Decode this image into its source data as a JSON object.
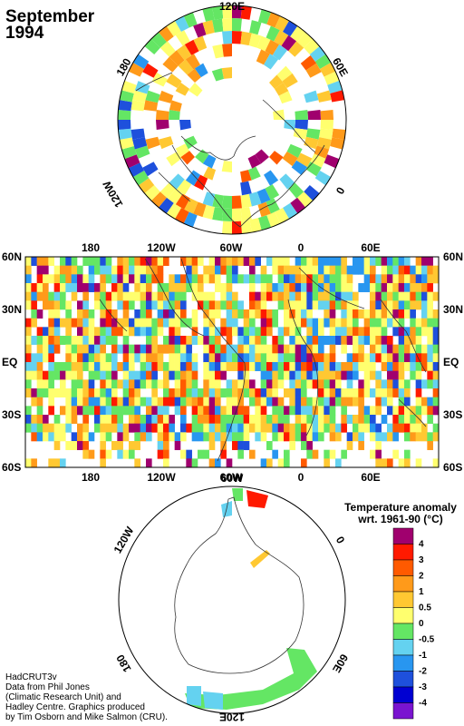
{
  "header": {
    "month": "September",
    "year": "1994"
  },
  "north_polar": {
    "labels": [
      "120E",
      "60E",
      "0",
      "120W",
      "180"
    ]
  },
  "equirect": {
    "lon_labels": [
      "180",
      "120W",
      "60W",
      "0",
      "60E"
    ],
    "lat_labels": [
      "60N",
      "30N",
      "EQ",
      "30S",
      "60S"
    ]
  },
  "south_polar": {
    "labels": [
      "60W",
      "0",
      "60E",
      "120E",
      "180",
      "120W"
    ]
  },
  "legend": {
    "title_line1": "Temperature anomaly",
    "title_line2": "wrt. 1961-90  (°C)",
    "entries": [
      {
        "label": "4",
        "color": "#a0006e"
      },
      {
        "label": "3",
        "color": "#ff1a00"
      },
      {
        "label": "2",
        "color": "#ff5a00"
      },
      {
        "label": "1",
        "color": "#ff9a1a"
      },
      {
        "label": "0.5",
        "color": "#ffc832"
      },
      {
        "label": "0",
        "color": "#ffff6e"
      },
      {
        "label": "-0.5",
        "color": "#64e664"
      },
      {
        "label": "-1",
        "color": "#64d2f0"
      },
      {
        "label": "-2",
        "color": "#2896f0"
      },
      {
        "label": "-3",
        "color": "#1e50dc"
      },
      {
        "label": "-4",
        "color": "#0000d2"
      },
      {
        "label": "",
        "color": "#7a14d0"
      }
    ]
  },
  "credits": [
    "HadCRUT3v",
    "Data from Phil Jones",
    "(Climatic Research Unit) and",
    "Hadley Centre.  Graphics produced",
    "by Tim Osborn and Mike Salmon (CRU)."
  ]
}
